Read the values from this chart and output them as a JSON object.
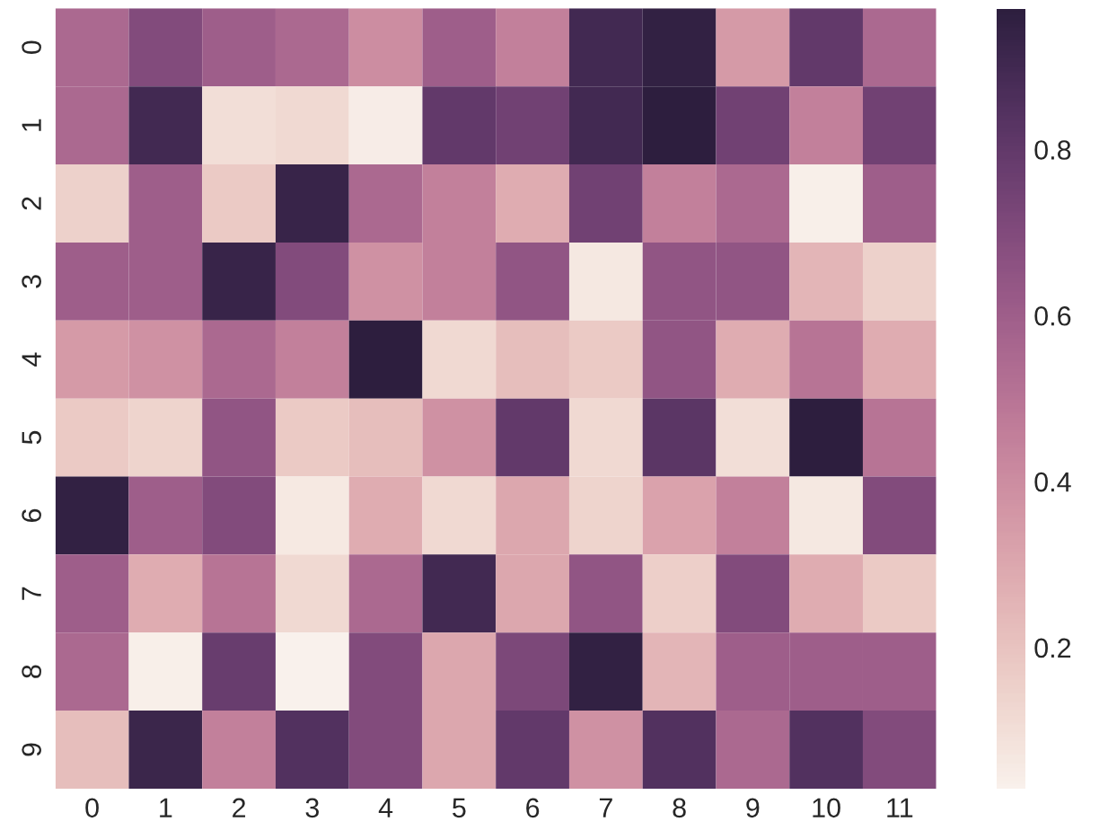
{
  "chart_data": {
    "type": "heatmap",
    "categories": [
      "0",
      "1",
      "2",
      "3",
      "4",
      "5",
      "6",
      "7",
      "8",
      "9",
      "10",
      "11"
    ],
    "y_categories": [
      "0",
      "1",
      "2",
      "3",
      "4",
      "5",
      "6",
      "7",
      "8",
      "9"
    ],
    "cells": [
      [
        0.55,
        0.7,
        0.6,
        0.55,
        0.4,
        0.6,
        0.45,
        0.9,
        0.95,
        0.35,
        0.8,
        0.55
      ],
      [
        0.55,
        0.9,
        0.1,
        0.12,
        0.05,
        0.8,
        0.75,
        0.9,
        0.97,
        0.75,
        0.45,
        0.75
      ],
      [
        0.15,
        0.6,
        0.18,
        0.93,
        0.55,
        0.45,
        0.28,
        0.75,
        0.45,
        0.55,
        0.04,
        0.6
      ],
      [
        0.6,
        0.6,
        0.93,
        0.7,
        0.38,
        0.45,
        0.65,
        0.07,
        0.65,
        0.65,
        0.25,
        0.15
      ],
      [
        0.35,
        0.38,
        0.55,
        0.45,
        0.97,
        0.12,
        0.22,
        0.18,
        0.65,
        0.28,
        0.5,
        0.28
      ],
      [
        0.18,
        0.14,
        0.65,
        0.18,
        0.22,
        0.38,
        0.8,
        0.12,
        0.82,
        0.1,
        0.97,
        0.5
      ],
      [
        0.95,
        0.6,
        0.7,
        0.06,
        0.28,
        0.12,
        0.3,
        0.14,
        0.32,
        0.45,
        0.07,
        0.7
      ],
      [
        0.6,
        0.28,
        0.5,
        0.12,
        0.55,
        0.9,
        0.3,
        0.65,
        0.16,
        0.7,
        0.28,
        0.18
      ],
      [
        0.55,
        0.04,
        0.78,
        0.03,
        0.7,
        0.3,
        0.72,
        0.95,
        0.25,
        0.6,
        0.6,
        0.6
      ],
      [
        0.22,
        0.92,
        0.45,
        0.85,
        0.7,
        0.3,
        0.8,
        0.38,
        0.85,
        0.55,
        0.85,
        0.7
      ]
    ],
    "clim": [
      0.03,
      0.97
    ],
    "cticks": [
      0.2,
      0.4,
      0.6,
      0.8
    ]
  }
}
